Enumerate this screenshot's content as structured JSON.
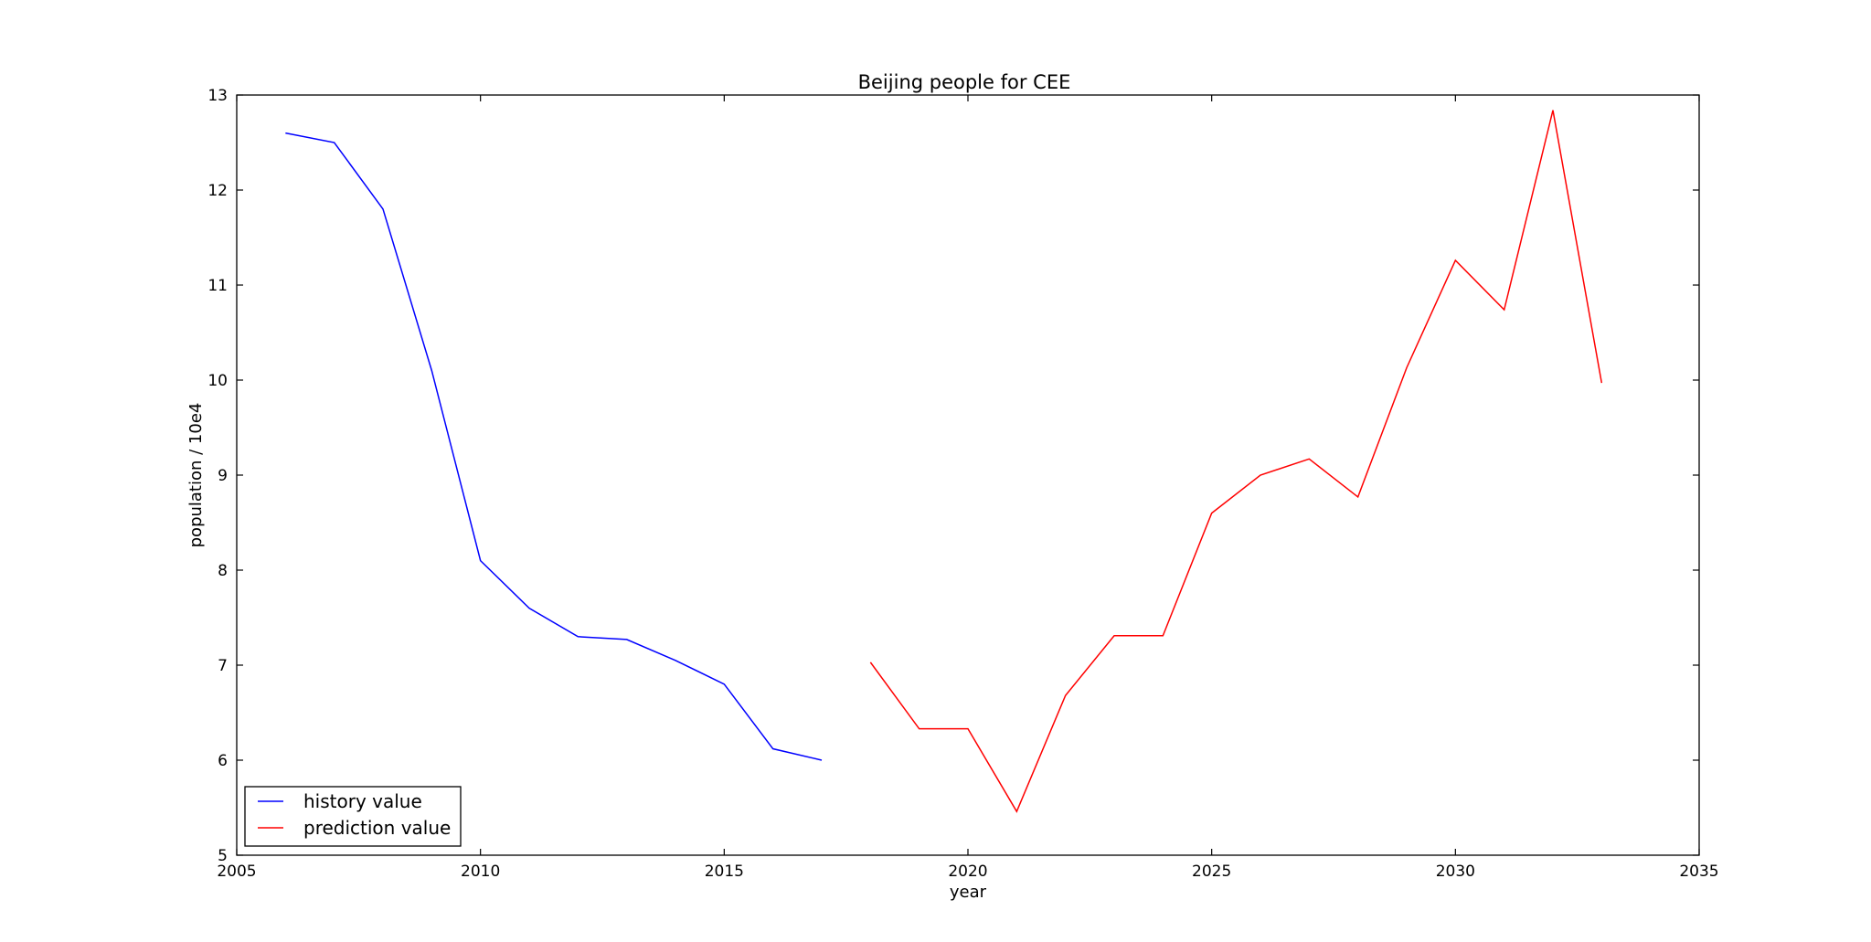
{
  "chart_data": {
    "type": "line",
    "title": "Beijing people for CEE",
    "xlabel": "year",
    "ylabel": "population / 10e4",
    "xlim": [
      2005,
      2035
    ],
    "ylim": [
      5,
      13
    ],
    "xticks": [
      "2005",
      "2010",
      "2015",
      "2020",
      "2025",
      "2030",
      "2035"
    ],
    "yticks": [
      "5",
      "6",
      "7",
      "8",
      "9",
      "10",
      "11",
      "12",
      "13"
    ],
    "grid": false,
    "legend_position": "lower-left",
    "series": [
      {
        "name": "history value",
        "color": "#0000ff",
        "x": [
          2006,
          2007,
          2008,
          2009,
          2010,
          2011,
          2012,
          2013,
          2014,
          2015,
          2016,
          2017
        ],
        "y": [
          12.6,
          12.5,
          11.8,
          10.1,
          8.1,
          7.6,
          7.3,
          7.27,
          7.05,
          6.8,
          6.12,
          6.0
        ]
      },
      {
        "name": "prediction value",
        "color": "#ff0000",
        "x": [
          2018,
          2019,
          2020,
          2021,
          2022,
          2023,
          2024,
          2025,
          2026,
          2027,
          2028,
          2029,
          2030,
          2031,
          2032,
          2033
        ],
        "y": [
          7.03,
          6.33,
          6.33,
          5.46,
          6.68,
          7.31,
          7.31,
          8.6,
          9.0,
          9.17,
          8.77,
          10.13,
          11.26,
          10.74,
          12.84,
          9.97
        ]
      }
    ]
  }
}
